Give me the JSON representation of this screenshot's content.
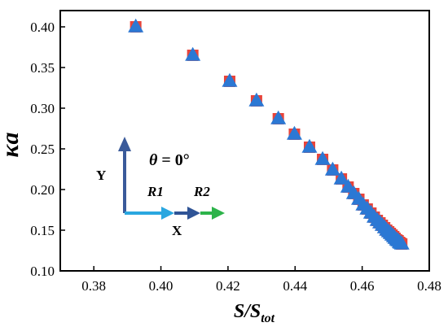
{
  "chart_data": {
    "type": "scatter",
    "xlabel": {
      "main": "S/S",
      "sub": "tot"
    },
    "ylabel": "κa",
    "xlim": [
      0.37,
      0.48
    ],
    "ylim": [
      0.1,
      0.42
    ],
    "x_ticks": [
      "0.38",
      "0.40",
      "0.42",
      "0.44",
      "0.46",
      "0.48"
    ],
    "x_tick_values": [
      0.38,
      0.4,
      0.42,
      0.44,
      0.46,
      0.48
    ],
    "y_ticks": [
      "0.10",
      "0.15",
      "0.20",
      "0.25",
      "0.30",
      "0.35",
      "0.40"
    ],
    "y_tick_values": [
      0.1,
      0.15,
      0.2,
      0.25,
      0.3,
      0.35,
      0.4
    ],
    "grid": false,
    "legend": "none",
    "series": [
      {
        "marker": "square",
        "color": "#e8443a",
        "x": [
          0.3925,
          0.4095,
          0.4205,
          0.4285,
          0.435,
          0.4398,
          0.4443,
          0.4482,
          0.4512,
          0.4538,
          0.4558,
          0.4575,
          0.459,
          0.4603,
          0.4615,
          0.4626,
          0.4636,
          0.4645,
          0.4653,
          0.466,
          0.4667,
          0.4673,
          0.4679,
          0.4684,
          0.4689,
          0.4694,
          0.4698,
          0.4703,
          0.4707,
          0.4711,
          0.4714,
          0.4718
        ],
        "y": [
          0.4,
          0.365,
          0.333,
          0.309,
          0.287,
          0.268,
          0.252,
          0.237,
          0.224,
          0.213,
          0.203,
          0.195,
          0.188,
          0.181,
          0.176,
          0.171,
          0.166,
          0.162,
          0.159,
          0.156,
          0.153,
          0.15,
          0.148,
          0.146,
          0.144,
          0.142,
          0.14,
          0.138,
          0.137,
          0.135,
          0.134,
          0.133
        ]
      },
      {
        "marker": "triangle",
        "color": "#2b78d4",
        "x": [
          0.3925,
          0.4095,
          0.4205,
          0.4285,
          0.435,
          0.4398,
          0.4443,
          0.4482,
          0.4512,
          0.4538,
          0.4558,
          0.4575,
          0.459,
          0.4603,
          0.4615,
          0.4626,
          0.4636,
          0.4645,
          0.4653,
          0.466,
          0.4667,
          0.4673,
          0.4679,
          0.4684,
          0.4689,
          0.4694,
          0.4698,
          0.4703,
          0.4707,
          0.4711,
          0.4714,
          0.4718
        ],
        "y": [
          0.4,
          0.365,
          0.333,
          0.309,
          0.287,
          0.268,
          0.252,
          0.237,
          0.224,
          0.213,
          0.203,
          0.195,
          0.188,
          0.181,
          0.176,
          0.171,
          0.166,
          0.162,
          0.159,
          0.156,
          0.153,
          0.15,
          0.148,
          0.146,
          0.144,
          0.142,
          0.14,
          0.138,
          0.137,
          0.135,
          0.134,
          0.133
        ]
      }
    ],
    "inset": {
      "angle_label": {
        "symbol": "θ",
        "rest": " = 0°"
      },
      "y_axis_label": "Y",
      "x_axis_label": "X",
      "arrow_r1_label": "R1",
      "arrow_r2_label": "R2",
      "colors": {
        "y_arrow": "#3a5a9a",
        "r1_arrow": "#2aa7e0",
        "r2_arrow_dark": "#2f5496",
        "r2_arrow_green": "#2db34a"
      }
    }
  }
}
